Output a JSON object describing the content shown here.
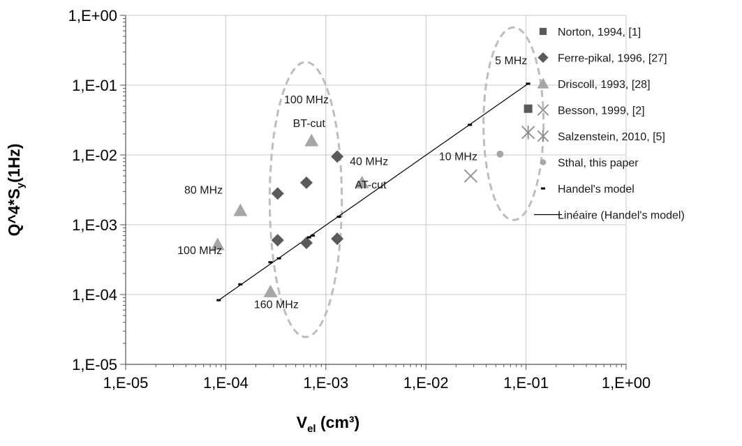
{
  "chart_data": {
    "type": "scatter",
    "xscale": "log",
    "yscale": "log",
    "xlim": [
      1e-05,
      1
    ],
    "ylim": [
      1e-05,
      1
    ],
    "grid": true,
    "legend_position": "right",
    "xlabel": {
      "main": "V",
      "sub": "el",
      "unit": " (cm³)"
    },
    "ylabel": {
      "main": "Q^4*S",
      "sub": "y",
      "unit": "(1Hz)"
    },
    "x_tick_labels": [
      "1,E-05",
      "1,E-04",
      "1,E-03",
      "1,E-02",
      "1,E-01",
      "1,E+00"
    ],
    "y_tick_labels": [
      "1,E-05",
      "1,E-04",
      "1,E-03",
      "1,E-02",
      "1,E-01",
      "1,E+00"
    ],
    "series": [
      {
        "name": "Norton, 1994, [1]",
        "marker": "square",
        "color": "#5a5a5a",
        "points": [
          [
            0.105,
            0.046
          ]
        ]
      },
      {
        "name": "Ferre-pikal, 1996, [27]",
        "marker": "diamond",
        "color": "#5a5a5a",
        "points": [
          [
            0.00033,
            0.0028
          ],
          [
            0.00064,
            0.004
          ],
          [
            0.0013,
            0.0095
          ],
          [
            0.00033,
            0.0006
          ],
          [
            0.00064,
            0.00055
          ],
          [
            0.0013,
            0.00063
          ]
        ]
      },
      {
        "name": "Driscoll, 1993, [28]",
        "marker": "triangle",
        "color": "#a6a6a6",
        "points": [
          [
            0.00072,
            0.016
          ],
          [
            0.00014,
            0.0016
          ],
          [
            8.3e-05,
            0.00052
          ],
          [
            0.00028,
            0.00011
          ],
          [
            0.0023,
            0.004
          ]
        ]
      },
      {
        "name": "Besson, 1999, [2]",
        "marker": "x",
        "color": "#8c8c8c",
        "points": [
          [
            0.028,
            0.005
          ]
        ]
      },
      {
        "name": "Salzenstein, 2010, [5]",
        "marker": "asterisk",
        "color": "#8c8c8c",
        "points": [
          [
            0.105,
            0.021
          ]
        ]
      },
      {
        "name": "Sthal, this paper",
        "marker": "circle",
        "color": "#a6a6a6",
        "points": [
          [
            0.055,
            0.0103
          ]
        ]
      },
      {
        "name": "Handel's model",
        "marker": "dash",
        "color": "#000000",
        "points": [
          [
            8.5e-05,
            8.3e-05
          ],
          [
            0.00014,
            0.00014
          ],
          [
            0.00028,
            0.00029
          ],
          [
            0.00034,
            0.00033
          ],
          [
            0.00068,
            0.00066
          ],
          [
            0.00074,
            0.0007
          ],
          [
            0.00135,
            0.0013
          ],
          [
            0.0275,
            0.027
          ],
          [
            0.105,
            0.105
          ]
        ]
      },
      {
        "name": "Linéaire (Handel's model)",
        "marker": "line",
        "color": "#000000",
        "points": [
          [
            8.5e-05,
            8.3e-05
          ],
          [
            0.105,
            0.105
          ]
        ]
      }
    ],
    "annotations": [
      {
        "text": "100 MHz",
        "x": 0.00064,
        "y": 0.055
      },
      {
        "text": "BT-cut",
        "x": 0.00068,
        "y": 0.025
      },
      {
        "text": "40 MHz",
        "x": 0.0027,
        "y": 0.0072
      },
      {
        "text": "AT-cut",
        "x": 0.0028,
        "y": 0.0033
      },
      {
        "text": "80 MHz",
        "x": 6e-05,
        "y": 0.0028
      },
      {
        "text": "100 MHz",
        "x": 5.5e-05,
        "y": 0.00038
      },
      {
        "text": "160 MHz",
        "x": 0.00032,
        "y": 6.4e-05
      },
      {
        "text": "10 MHz",
        "x": 0.021,
        "y": 0.0084
      },
      {
        "text": "5 MHz",
        "x": 0.071,
        "y": 0.2
      }
    ],
    "groups": [
      {
        "name": "group-100mhz",
        "center": [
          0.00063,
          0.0023
        ],
        "rx_decades": 0.36,
        "ry_decades": 1.97
      },
      {
        "name": "group-5mhz",
        "center": [
          0.075,
          0.028
        ],
        "rx_decades": 0.3,
        "ry_decades": 1.38
      }
    ]
  }
}
